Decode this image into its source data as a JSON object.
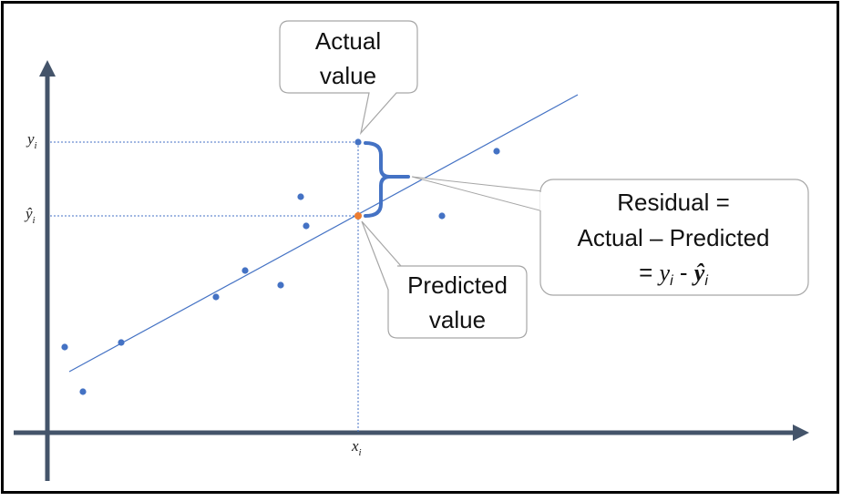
{
  "colors": {
    "frame": "#000000",
    "axis": "#44546a",
    "point": "#4472c4",
    "predicted_point": "#ed7d31",
    "line": "#4472c4",
    "brace": "#4472c4",
    "guide": "#4472c4",
    "callout_border": "#a6a6a6",
    "callout_fill": "#ffffff"
  },
  "labels": {
    "y_i": "y",
    "y_i_sub": "i",
    "y_hat": "ŷ",
    "y_hat_sub": "i",
    "x_i": "x",
    "x_i_sub": "i"
  },
  "callouts": {
    "actual": {
      "line1": "Actual",
      "line2": "value"
    },
    "predicted": {
      "line1": "Predicted",
      "line2": "value"
    },
    "residual": {
      "line1": "Residual =",
      "line2": "Actual – Predicted",
      "line3_prefix": "= ",
      "line3_y": "y",
      "line3_y_sub": "i",
      "line3_minus": " - ",
      "line3_yhat": "ŷ",
      "line3_yhat_sub": "i"
    }
  },
  "icons": {
    "x_axis_arrow": "arrow-right-icon",
    "y_axis_arrow": "arrow-up-icon",
    "residual_brace": "curly-brace-icon"
  }
}
